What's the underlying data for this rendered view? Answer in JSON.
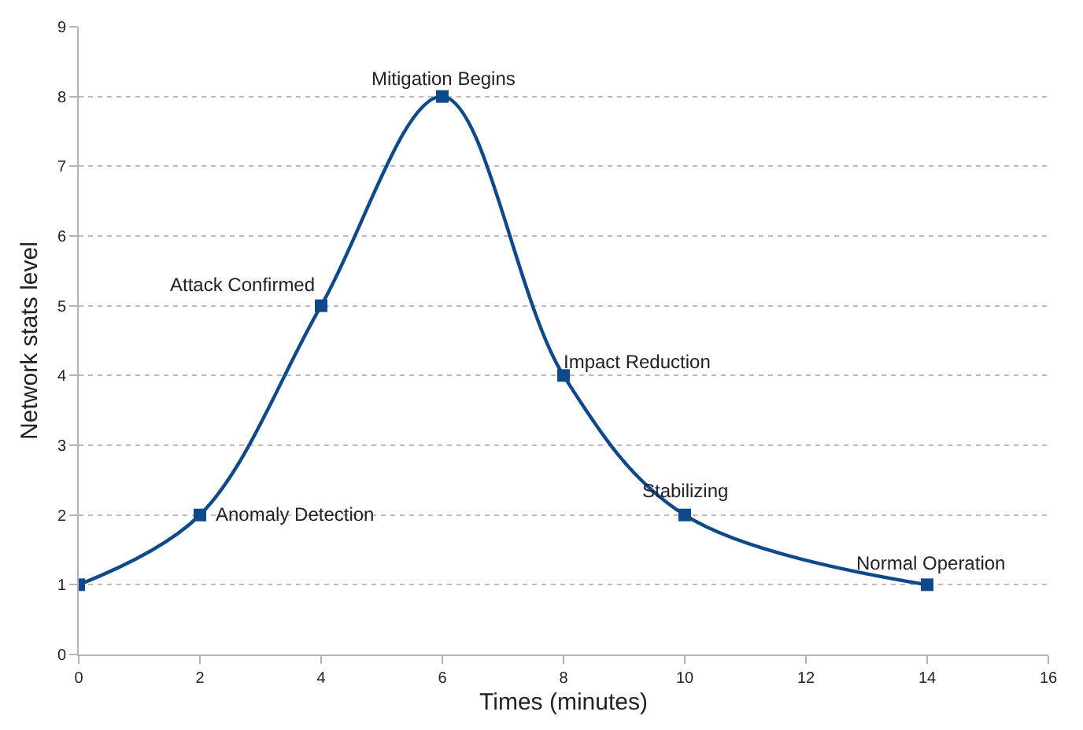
{
  "chart_data": {
    "type": "line",
    "xlabel": "Times (minutes)",
    "ylabel": "Network stats level",
    "x": [
      0,
      2,
      4,
      6,
      8,
      10,
      14
    ],
    "series": [
      {
        "color": "#0e4a8a",
        "values": [
          1,
          2,
          5,
          8,
          4,
          2,
          1
        ]
      }
    ],
    "xlim": [
      0,
      16
    ],
    "xticks": [
      0,
      2,
      4,
      6,
      8,
      10,
      12,
      14,
      16
    ],
    "ylim": [
      0,
      9
    ],
    "yticks": [
      0,
      1,
      2,
      3,
      4,
      5,
      6,
      7,
      8,
      9
    ],
    "grid": "y",
    "marker": "square",
    "line_style": "solid",
    "annotations": [
      {
        "text": "Anomaly Detection",
        "x": 2,
        "y": 2
      },
      {
        "text": "Attack Confirmed",
        "x": 4,
        "y": 5
      },
      {
        "text": "Mitigation Begins",
        "x": 6,
        "y": 8
      },
      {
        "text": "Impact Reduction",
        "x": 8,
        "y": 4
      },
      {
        "text": "Stabilizing",
        "x": 10,
        "y": 2
      },
      {
        "text": "Normal Operation",
        "x": 14,
        "y": 1
      }
    ]
  }
}
